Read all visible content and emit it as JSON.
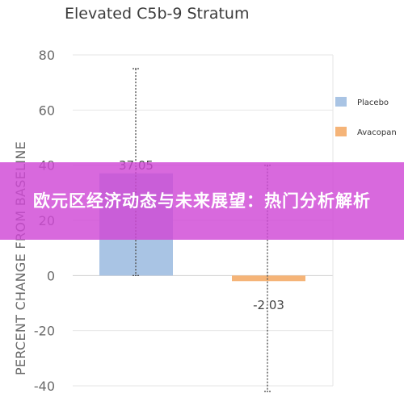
{
  "chart_data": {
    "type": "bar",
    "title": "Elevated C5b-9 Stratum",
    "ylabel": "PERCENT CHANGE FROM BASELINE",
    "xlabel": "",
    "ylim": [
      -40,
      80
    ],
    "yticks": [
      "80",
      "60",
      "40",
      "20",
      "0",
      "-20",
      "-40"
    ],
    "grid": true,
    "legend_position": "right",
    "series": [
      {
        "name": "Placebo",
        "color": "#a9c4e4",
        "value": 37.05,
        "label": "37.05",
        "error_low": 0,
        "error_high": 75
      },
      {
        "name": "Avacopan",
        "color": "#f5b478",
        "value": -2.03,
        "label": "-2.03",
        "error_low": -42,
        "error_high": 40
      }
    ]
  },
  "banner": {
    "text": "欧元区经济动态与未来展望：热门分析解析"
  }
}
